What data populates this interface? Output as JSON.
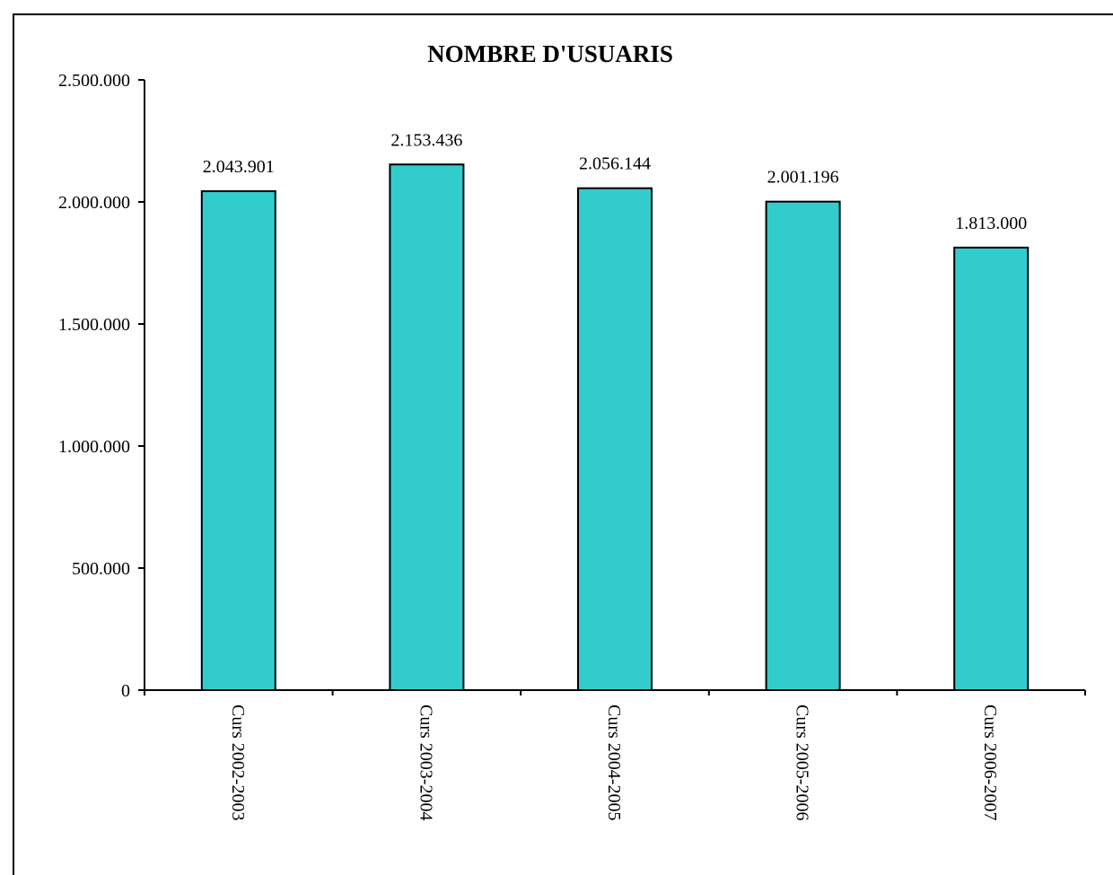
{
  "chart_data": {
    "type": "bar",
    "title": "NOMBRE D'USUARIS",
    "xlabel": "",
    "ylabel": "",
    "categories": [
      "Curs 2002-2003",
      "Curs 2003-2004",
      "Curs 2004-2005",
      "Curs 2005-2006",
      "Curs 2006-2007"
    ],
    "values": [
      2043901,
      2153436,
      2056144,
      2001196,
      1813000
    ],
    "value_labels": [
      "2.043.901",
      "2.153.436",
      "2.056.144",
      "2.001.196",
      "1.813.000"
    ],
    "ylim": [
      0,
      2500000
    ],
    "yticks": [
      0,
      500000,
      1000000,
      1500000,
      2000000,
      2500000
    ],
    "ytick_labels": [
      "0",
      "500.000",
      "1.000.000",
      "1.500.000",
      "2.000.000",
      "2.500.000"
    ],
    "grid": false,
    "legend": "none",
    "colors": {
      "bar_fill": "#33CCCC",
      "bar_stroke": "#000000",
      "axis": "#000000",
      "background": "#FFFFFF"
    }
  }
}
